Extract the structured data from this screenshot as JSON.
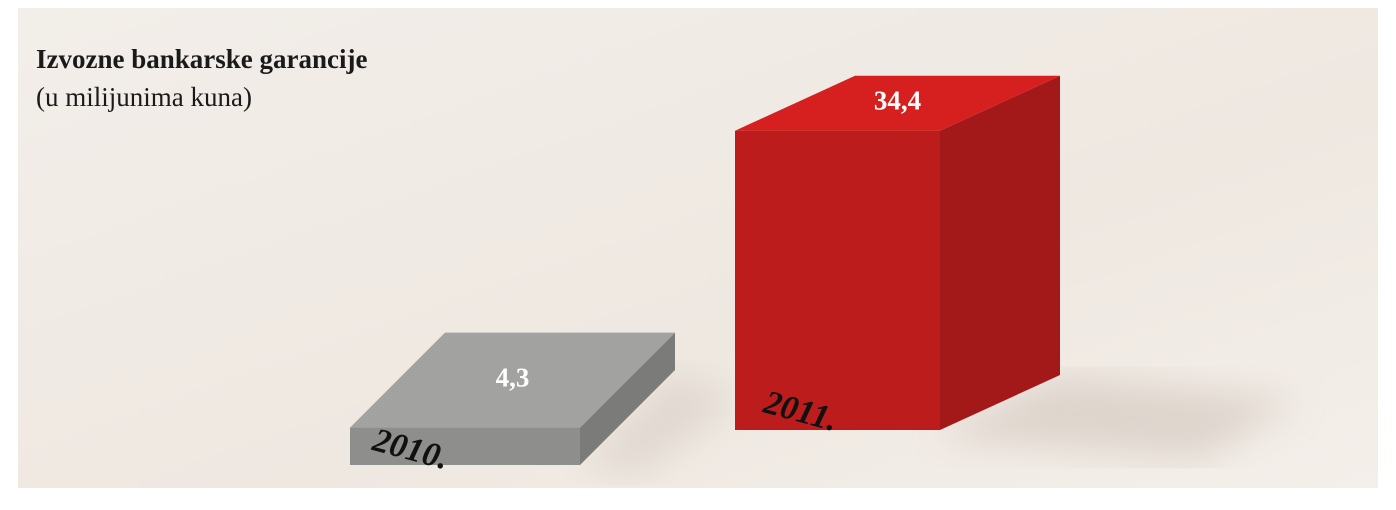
{
  "chart_data": {
    "type": "bar",
    "title": "Izvozne bankarske garancije",
    "subtitle": "(u milijunima kuna)",
    "categories": [
      "2010.",
      "2011."
    ],
    "values": [
      4.3,
      34.4
    ],
    "value_labels": [
      "4,3",
      "34,4"
    ],
    "colors": [
      "#9a9a98",
      "#cc1e1e"
    ]
  }
}
